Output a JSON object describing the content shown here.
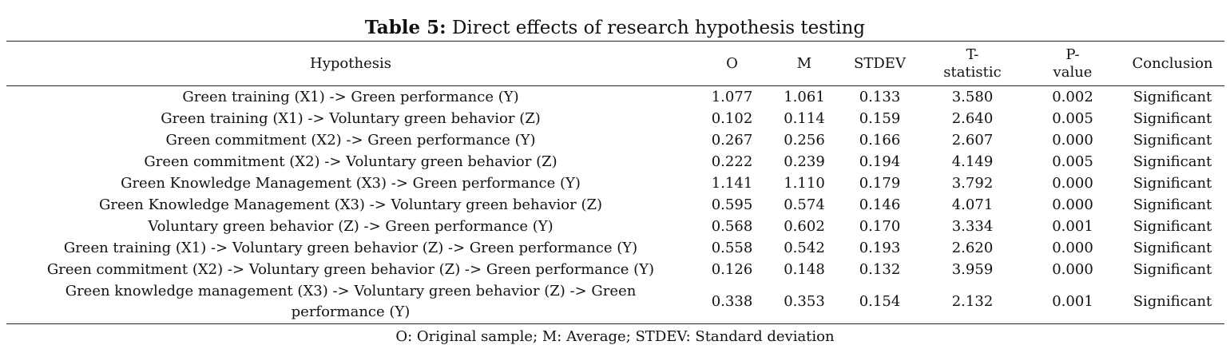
{
  "caption": {
    "label": "Table 5:",
    "text": " Direct effects of research hypothesis testing"
  },
  "headers": {
    "hypothesis": "Hypothesis",
    "o": "O",
    "m": "M",
    "stdev": "STDEV",
    "t": "T-\nstatistic",
    "p": "P-\nvalue",
    "conclusion": "Conclusion"
  },
  "rows": [
    {
      "hypothesis": "Green training (X1) -> Green performance (Y)",
      "o": "1.077",
      "m": "1.061",
      "stdev": "0.133",
      "t": "3.580",
      "p": "0.002",
      "conclusion": "Significant"
    },
    {
      "hypothesis": "Green training (X1) -> Voluntary green behavior (Z)",
      "o": "0.102",
      "m": "0.114",
      "stdev": "0.159",
      "t": "2.640",
      "p": "0.005",
      "conclusion": "Significant"
    },
    {
      "hypothesis": "Green commitment (X2) -> Green performance (Y)",
      "o": "0.267",
      "m": "0.256",
      "stdev": "0.166",
      "t": "2.607",
      "p": "0.000",
      "conclusion": "Significant"
    },
    {
      "hypothesis": "Green commitment (X2) -> Voluntary green behavior (Z)",
      "o": "0.222",
      "m": "0.239",
      "stdev": "0.194",
      "t": "4.149",
      "p": "0.005",
      "conclusion": "Significant"
    },
    {
      "hypothesis": "Green Knowledge Management (X3) -> Green performance (Y)",
      "o": "1.141",
      "m": "1.110",
      "stdev": "0.179",
      "t": "3.792",
      "p": "0.000",
      "conclusion": "Significant"
    },
    {
      "hypothesis": "Green Knowledge Management (X3) -> Voluntary green behavior (Z)",
      "o": "0.595",
      "m": "0.574",
      "stdev": "0.146",
      "t": "4.071",
      "p": "0.000",
      "conclusion": "Significant"
    },
    {
      "hypothesis": "Voluntary green behavior (Z) -> Green performance (Y)",
      "o": "0.568",
      "m": "0.602",
      "stdev": "0.170",
      "t": "3.334",
      "p": "0.001",
      "conclusion": "Significant"
    },
    {
      "hypothesis": "Green training (X1) -> Voluntary green behavior (Z) -> Green performance (Y)",
      "o": "0.558",
      "m": "0.542",
      "stdev": "0.193",
      "t": "2.620",
      "p": "0.000",
      "conclusion": "Significant"
    },
    {
      "hypothesis": "Green commitment (X2) -> Voluntary green behavior (Z) -> Green performance (Y)",
      "o": "0.126",
      "m": "0.148",
      "stdev": "0.132",
      "t": "3.959",
      "p": "0.000",
      "conclusion": "Significant"
    },
    {
      "hypothesis": "Green knowledge management (X3) -> Voluntary green behavior (Z) -> Green performance (Y)",
      "o": "0.338",
      "m": "0.353",
      "stdev": "0.154",
      "t": "2.132",
      "p": "0.001",
      "conclusion": "Significant"
    }
  ],
  "footnote": "O: Original sample; M: Average; STDEV: Standard deviation"
}
